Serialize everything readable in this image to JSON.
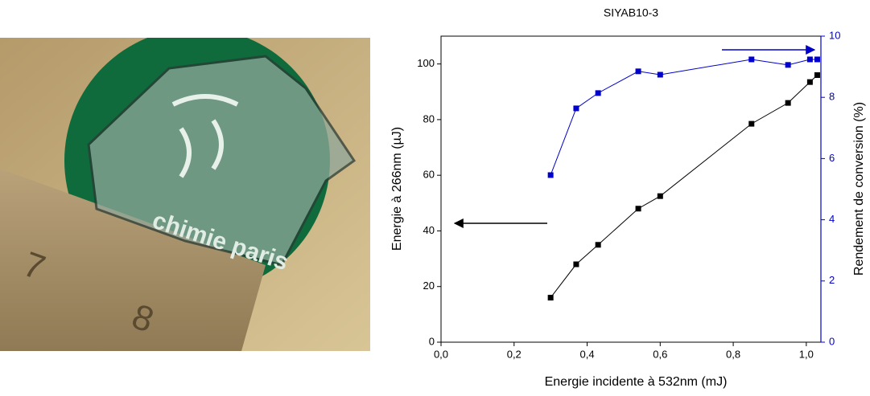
{
  "photo": {
    "texts": [
      "chimie paris",
      "7",
      "8"
    ]
  },
  "chart_data": {
    "type": "line",
    "title": "SIYAB10-3",
    "x_label": "Energie incidente à 532nm (mJ)",
    "y_label": "Energie à 266nm (µJ)",
    "y2_label": "Rendement de conversion (%)",
    "x": [
      0.3,
      0.37,
      0.43,
      0.54,
      0.6,
      0.85,
      0.95,
      1.01,
      1.03
    ],
    "series": [
      {
        "color": "#000000",
        "values": [
          16,
          28,
          35,
          48,
          52.5,
          78.5,
          86,
          93.5,
          96
        ]
      },
      {
        "color": "#0000cc",
        "axis": "y2",
        "values": [
          5.46,
          7.64,
          8.14,
          8.85,
          8.74,
          9.24,
          9.06,
          9.24,
          9.24
        ]
      }
    ],
    "xlim": [
      0,
      1.04
    ],
    "xticks": [
      {
        "value": 0,
        "label": "0,0"
      },
      {
        "value": 0.2,
        "label": "0,2"
      },
      {
        "value": 0.4,
        "label": "0,4"
      },
      {
        "value": 0.6,
        "label": "0,6"
      },
      {
        "value": 0.8,
        "label": "0,8"
      },
      {
        "value": 1.0,
        "label": "1,0"
      }
    ],
    "ylim": [
      0,
      110
    ],
    "yticks": [
      0,
      20,
      40,
      60,
      80,
      100
    ],
    "y2lim": [
      0,
      10
    ],
    "y2ticks": [
      0,
      2,
      4,
      6,
      8,
      10
    ],
    "y2_color": "#0000cc",
    "grid": false
  }
}
